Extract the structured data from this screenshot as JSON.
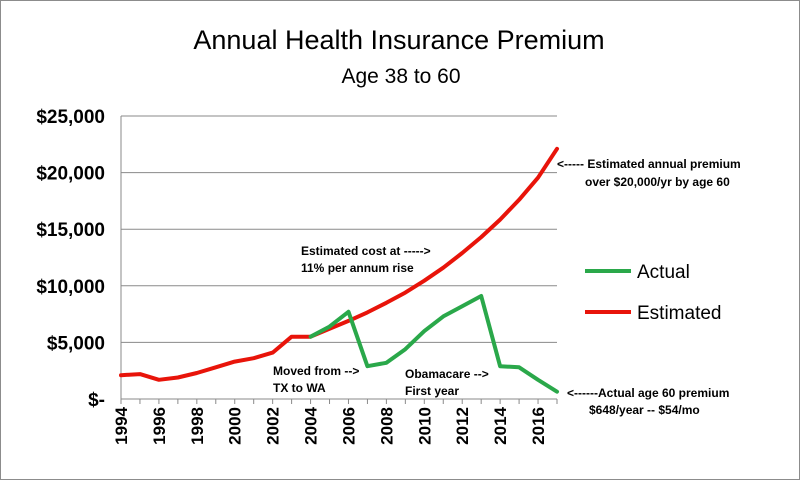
{
  "chart_data": {
    "type": "line",
    "title": "Annual Health Insurance Premium",
    "subtitle": "Age 38 to 60",
    "xlabel": "",
    "ylabel": "",
    "xlim": [
      1994,
      2017
    ],
    "ylim": [
      0,
      25000
    ],
    "y_ticks": [
      {
        "value": 0,
        "label": "$-"
      },
      {
        "value": 5000,
        "label": "$5,000"
      },
      {
        "value": 10000,
        "label": "$10,000"
      },
      {
        "value": 15000,
        "label": "$15,000"
      },
      {
        "value": 20000,
        "label": "$20,000"
      },
      {
        "value": 25000,
        "label": "$25,000"
      }
    ],
    "x_ticks": [
      "1994",
      "1996",
      "1998",
      "2000",
      "2002",
      "2004",
      "2006",
      "2008",
      "2010",
      "2012",
      "2014",
      "2016"
    ],
    "grid": {
      "horizontal": true,
      "vertical": false
    },
    "legend_position": "right",
    "series": [
      {
        "name": "Estimated",
        "color": "#e8140a",
        "x": [
          1994,
          1995,
          1996,
          1997,
          1998,
          1999,
          2000,
          2001,
          2002,
          2003,
          2004,
          2005,
          2006,
          2007,
          2008,
          2009,
          2010,
          2011,
          2012,
          2013,
          2014,
          2015,
          2016,
          2017
        ],
        "y": [
          2100,
          2200,
          1700,
          1900,
          2300,
          2800,
          3300,
          3600,
          4100,
          5500,
          5500,
          6200,
          6900,
          7650,
          8500,
          9400,
          10450,
          11600,
          12900,
          14300,
          15850,
          17600,
          19550,
          22100
        ]
      },
      {
        "name": "Actual",
        "color": "#2aa84a",
        "x": [
          2004,
          2005,
          2006,
          2007,
          2008,
          2009,
          2010,
          2011,
          2012,
          2013,
          2014,
          2015,
          2016,
          2017
        ],
        "y": [
          5500,
          6400,
          7700,
          2900,
          3200,
          4400,
          6000,
          7300,
          8200,
          9100,
          2900,
          2800,
          1700,
          648
        ]
      }
    ],
    "annotations": [
      {
        "lines": [
          "Estimated cost at ----->",
          "11% per annum rise"
        ]
      },
      {
        "lines": [
          "<----- Estimated annual premium",
          "over $20,000/yr by age 60"
        ]
      },
      {
        "lines": [
          "Moved from -->",
          "TX to WA"
        ]
      },
      {
        "lines": [
          "Obamacare -->",
          "First year"
        ]
      },
      {
        "lines": [
          "<------Actual age 60 premium",
          "$648/year -- $54/mo"
        ]
      }
    ]
  },
  "legend": {
    "items": [
      {
        "label": "Actual",
        "color": "#2aa84a"
      },
      {
        "label": "Estimated",
        "color": "#e8140a"
      }
    ]
  }
}
